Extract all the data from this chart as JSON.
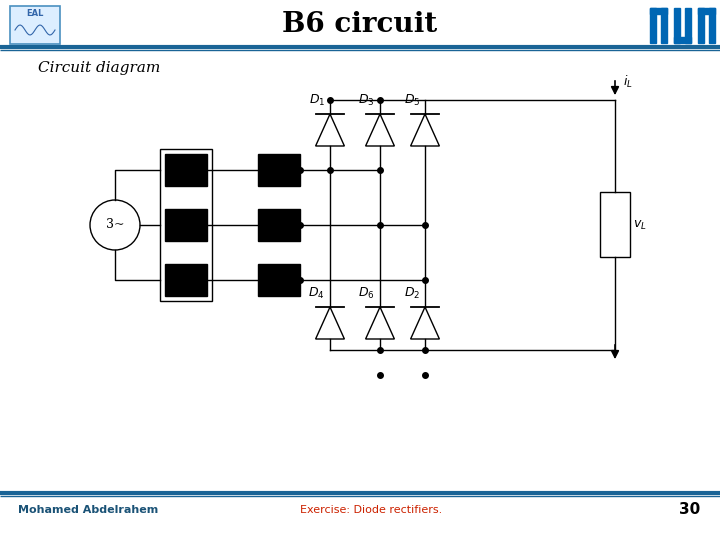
{
  "title": "B6 circuit",
  "subtitle": "Circuit diagram",
  "author": "Mohamed Abdelrahem",
  "exercise": "Exercise: Diode rectifiers.",
  "page": "30",
  "bg": "#ffffff",
  "bar_color": "#1a6496",
  "title_color": "#000000",
  "author_color": "#1a5276",
  "exercise_color": "#cc2200",
  "lw": 1.0
}
